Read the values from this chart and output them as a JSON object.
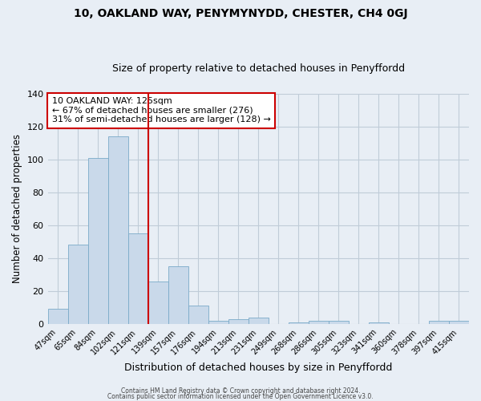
{
  "title": "10, OAKLAND WAY, PENYMYNYDD, CHESTER, CH4 0GJ",
  "subtitle": "Size of property relative to detached houses in Penyffordd",
  "xlabel": "Distribution of detached houses by size in Penyffordd",
  "ylabel": "Number of detached properties",
  "bar_labels": [
    "47sqm",
    "65sqm",
    "84sqm",
    "102sqm",
    "121sqm",
    "139sqm",
    "157sqm",
    "176sqm",
    "194sqm",
    "213sqm",
    "231sqm",
    "249sqm",
    "268sqm",
    "286sqm",
    "305sqm",
    "323sqm",
    "341sqm",
    "360sqm",
    "378sqm",
    "397sqm",
    "415sqm"
  ],
  "bar_values": [
    9,
    48,
    101,
    114,
    55,
    26,
    35,
    11,
    2,
    3,
    4,
    0,
    1,
    2,
    2,
    0,
    1,
    0,
    0,
    2,
    2
  ],
  "bar_color": "#c9d9ea",
  "bar_edge_color": "#7aaac8",
  "vline_x_idx": 4,
  "vline_color": "#cc0000",
  "ylim": [
    0,
    140
  ],
  "yticks": [
    0,
    20,
    40,
    60,
    80,
    100,
    120,
    140
  ],
  "annotation_text": "10 OAKLAND WAY: 125sqm\n← 67% of detached houses are smaller (276)\n31% of semi-detached houses are larger (128) →",
  "annotation_box_facecolor": "#ffffff",
  "annotation_border_color": "#cc0000",
  "footer_line1": "Contains HM Land Registry data © Crown copyright and database right 2024.",
  "footer_line2": "Contains public sector information licensed under the Open Government Licence v3.0.",
  "fig_facecolor": "#e8eef5",
  "plot_facecolor": "#e8eef5",
  "grid_color": "#c0ccd8",
  "title_fontsize": 10,
  "subtitle_fontsize": 9
}
